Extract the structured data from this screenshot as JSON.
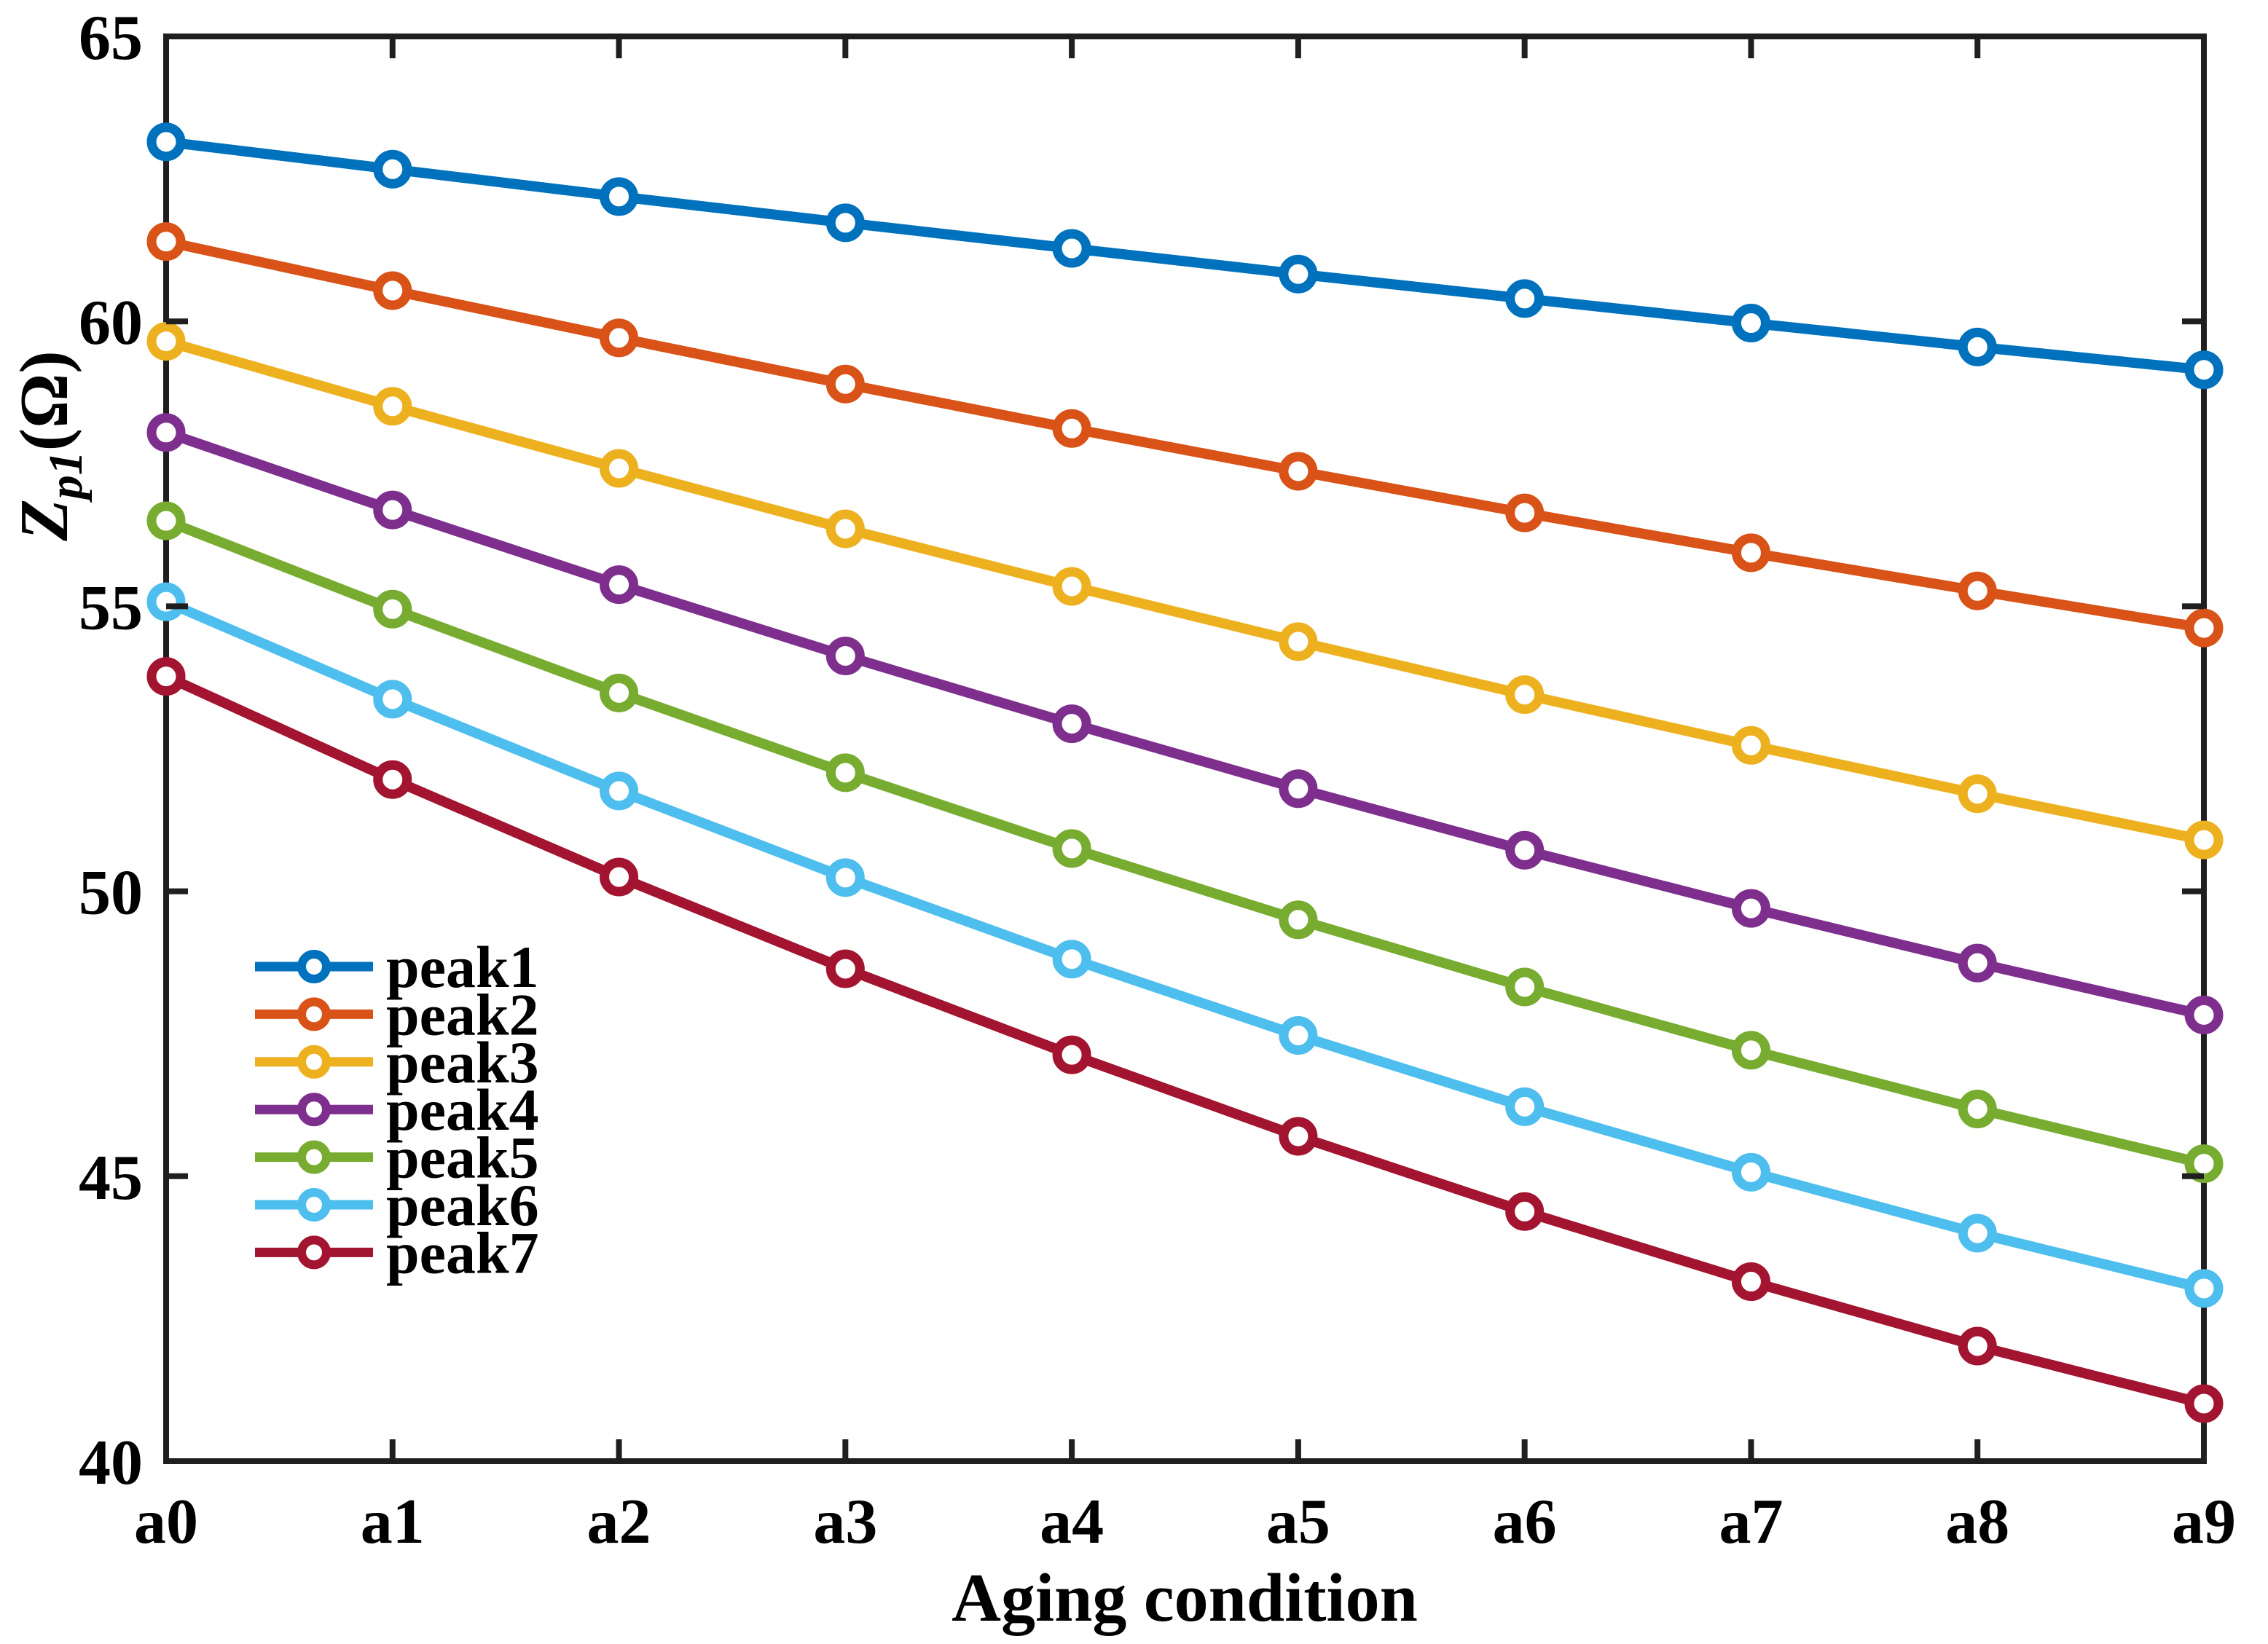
{
  "figure": {
    "background": "#ffffff",
    "axis_color": "#1f1f1f",
    "text_color": "#000000"
  },
  "chart_data": {
    "type": "line",
    "title": "",
    "xlabel": "Aging condition",
    "ylabel": "Z_p1(Ω)",
    "ylabel_parts": {
      "main": "Z",
      "sub": "p1",
      "suffix": "(Ω)"
    },
    "x_categories": [
      "a0",
      "a1",
      "a2",
      "a3",
      "a4",
      "a5",
      "a6",
      "a7",
      "a8",
      "a9"
    ],
    "y_ticks": [
      40,
      45,
      50,
      55,
      60,
      65
    ],
    "ylim": [
      40,
      65
    ],
    "grid": false,
    "marker_style": "open-circle",
    "legend_position": "lower-left-inside",
    "series": [
      {
        "name": "peak1",
        "color": "#0072BD",
        "values": [
          63.15,
          62.67,
          62.19,
          61.73,
          61.28,
          60.83,
          60.4,
          59.97,
          59.55,
          59.15
        ]
      },
      {
        "name": "peak2",
        "color": "#D95319",
        "values": [
          61.4,
          60.54,
          59.71,
          58.9,
          58.12,
          57.37,
          56.64,
          55.94,
          55.27,
          54.62
        ]
      },
      {
        "name": "peak3",
        "color": "#EDB120",
        "values": [
          59.65,
          58.51,
          57.42,
          56.36,
          55.35,
          54.38,
          53.45,
          52.56,
          51.71,
          50.9
        ]
      },
      {
        "name": "peak4",
        "color": "#7E2F8E",
        "values": [
          58.05,
          56.69,
          55.38,
          54.13,
          52.94,
          51.8,
          50.72,
          49.7,
          48.74,
          47.83
        ]
      },
      {
        "name": "peak5",
        "color": "#77AC30",
        "values": [
          56.5,
          54.95,
          53.48,
          52.08,
          50.75,
          49.5,
          48.32,
          47.21,
          46.18,
          45.22
        ]
      },
      {
        "name": "peak6",
        "color": "#4DBEEE",
        "values": [
          55.08,
          53.37,
          51.76,
          50.24,
          48.81,
          47.47,
          46.22,
          45.07,
          44.0,
          43.03
        ]
      },
      {
        "name": "peak7",
        "color": "#A2142F",
        "values": [
          53.77,
          51.96,
          50.25,
          48.64,
          47.13,
          45.7,
          44.38,
          43.15,
          42.02,
          41.01
        ]
      }
    ]
  }
}
